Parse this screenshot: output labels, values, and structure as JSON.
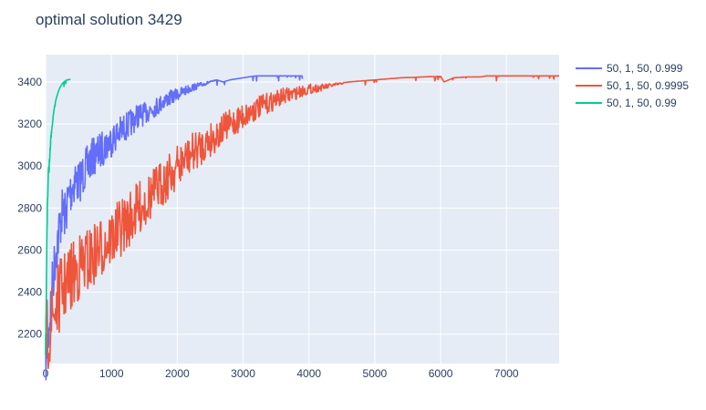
{
  "chart_data": {
    "type": "line",
    "title": "optimal solution 3429",
    "xlabel": "",
    "ylabel": "",
    "xlim": [
      0,
      7800
    ],
    "ylim": [
      2060,
      3530
    ],
    "xticks": [
      0,
      1000,
      2000,
      3000,
      4000,
      5000,
      6000,
      7000
    ],
    "xtick_labels": [
      "0",
      "1000",
      "2000",
      "3000",
      "4000",
      "5000",
      "6000",
      "7000"
    ],
    "yticks": [
      2200,
      2400,
      2600,
      2800,
      3000,
      3200,
      3400
    ],
    "ytick_labels": [
      "2200",
      "2400",
      "2600",
      "2800",
      "3000",
      "3200",
      "3400"
    ],
    "grid": true,
    "legend_position": "right",
    "colors": {
      "plot_bg": "#e5ecf6",
      "grid": "#ffffff",
      "text": "#2a3f5f"
    },
    "series": [
      {
        "name": "50, 1, 50, 0.999",
        "color": "#636efa",
        "x": [
          0,
          50,
          100,
          150,
          200,
          250,
          300,
          350,
          400,
          450,
          500,
          600,
          700,
          800,
          900,
          1000,
          1100,
          1200,
          1300,
          1400,
          1500,
          1600,
          1700,
          1800,
          1900,
          2000,
          2100,
          2200,
          2300,
          2400,
          2500,
          2600,
          2700,
          2800,
          2900,
          3000,
          3100,
          3200,
          3300,
          3400,
          3500,
          3600,
          3700,
          3800,
          3900
        ],
        "y": [
          2200,
          2350,
          2550,
          2700,
          2800,
          2900,
          2880,
          2970,
          3000,
          3050,
          3020,
          3080,
          3130,
          3150,
          3180,
          3200,
          3230,
          3250,
          3270,
          3300,
          3300,
          3320,
          3330,
          3350,
          3360,
          3370,
          3380,
          3390,
          3395,
          3400,
          3405,
          3410,
          3400,
          3410,
          3415,
          3420,
          3425,
          3429,
          3429,
          3429,
          3429,
          3429,
          3429,
          3429,
          3429
        ]
      },
      {
        "name": "50, 1, 50, 0.9995",
        "color": "#ef553b",
        "x": [
          0,
          100,
          200,
          300,
          400,
          500,
          600,
          700,
          800,
          900,
          1000,
          1100,
          1200,
          1300,
          1400,
          1500,
          1600,
          1700,
          1800,
          1900,
          2000,
          2200,
          2400,
          2600,
          2800,
          3000,
          3200,
          3400,
          3600,
          3800,
          4000,
          4200,
          4400,
          4600,
          4800,
          5000,
          5200,
          5400,
          5600,
          5800,
          6000,
          6050,
          6200,
          6400,
          6600,
          6700,
          7000,
          7400,
          7800
        ],
        "y": [
          2350,
          2450,
          2550,
          2600,
          2640,
          2680,
          2700,
          2720,
          2750,
          2780,
          2800,
          2830,
          2860,
          2890,
          2920,
          2950,
          2980,
          3010,
          3040,
          3070,
          3100,
          3150,
          3190,
          3230,
          3270,
          3300,
          3330,
          3350,
          3370,
          3380,
          3390,
          3390,
          3395,
          3400,
          3405,
          3410,
          3415,
          3420,
          3422,
          3425,
          3427,
          3400,
          3420,
          3424,
          3424,
          3429,
          3429,
          3429,
          3429
        ]
      },
      {
        "name": "50, 1, 50, 0.99",
        "color": "#00cc96",
        "x": [
          0,
          20,
          40,
          60,
          80,
          100,
          120,
          140,
          160,
          180,
          200,
          220,
          240,
          260,
          280,
          300,
          320,
          340,
          360,
          380
        ],
        "y": [
          2110,
          2750,
          2980,
          3050,
          3150,
          3200,
          3250,
          3290,
          3320,
          3340,
          3360,
          3375,
          3385,
          3395,
          3400,
          3405,
          3410,
          3410,
          3412,
          3412
        ]
      }
    ]
  }
}
